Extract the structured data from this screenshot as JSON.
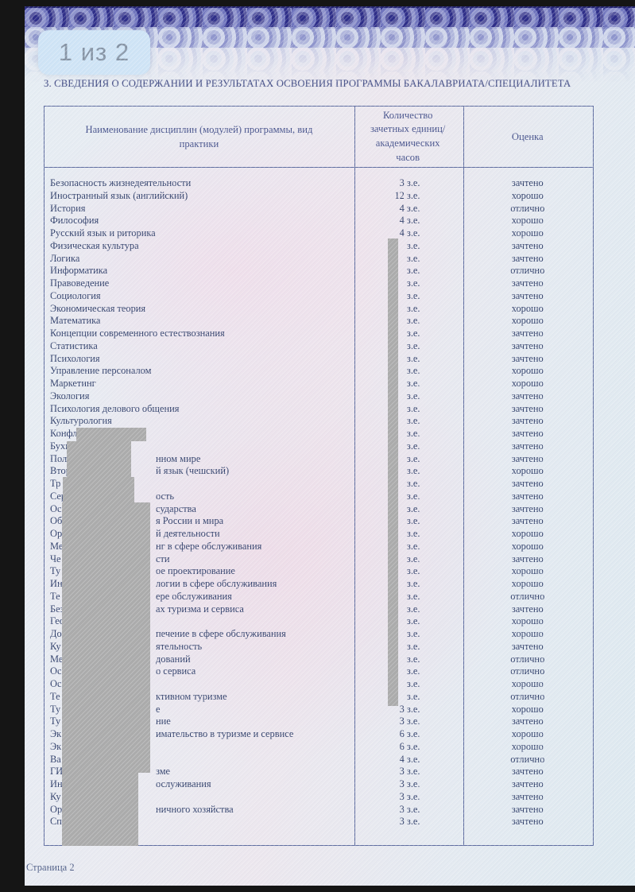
{
  "viewer": {
    "page_badge": "1 из 2",
    "footer_page_label": "Страница 2"
  },
  "document": {
    "section_heading": "3. СВЕДЕНИЯ О СОДЕРЖАНИИ И РЕЗУЛЬТАТАХ ОСВОЕНИЯ ПРОГРАММЫ БАКАЛАВРИАТА/СПЕЦИАЛИТЕТА",
    "table": {
      "col_headers": {
        "course": "Наименование дисциплин (модулей) программы, вид практики",
        "credits": "Количество зачетных единиц/ академических часов",
        "grade": "Оценка"
      },
      "credits_unit": "з.е.",
      "rows": [
        {
          "name": "Безопасность жизнедеятельности",
          "credits": "3 з.е.",
          "grade": "зачтено"
        },
        {
          "name": "Иностранный язык (английский)",
          "credits": "12 з.е.",
          "grade": "хорошо"
        },
        {
          "name": "История",
          "credits": "4 з.е.",
          "grade": "отлично"
        },
        {
          "name": "Философия",
          "credits": "4 з.е.",
          "grade": "хорошо"
        },
        {
          "name": "Русский язык и риторика",
          "credits": "4 з.е.",
          "grade": "хорошо"
        },
        {
          "name": "Физическая культура",
          "credits": "з.е.",
          "grade": "зачтено"
        },
        {
          "name": "Логика",
          "credits": "з.е.",
          "grade": "зачтено"
        },
        {
          "name": "Информатика",
          "credits": "з.е.",
          "grade": "отлично"
        },
        {
          "name": "Правоведение",
          "credits": "з.е.",
          "grade": "зачтено"
        },
        {
          "name": "Социология",
          "credits": "з.е.",
          "grade": "зачтено"
        },
        {
          "name": "Экономическая теория",
          "credits": "з.е.",
          "grade": "хорошо"
        },
        {
          "name": "Математика",
          "credits": "з.е.",
          "grade": "хорошо"
        },
        {
          "name": "Концепции современного естествознания",
          "credits": "з.е.",
          "grade": "зачтено"
        },
        {
          "name": "Статистика",
          "credits": "з.е.",
          "grade": "зачтено"
        },
        {
          "name": "Психология",
          "credits": "з.е.",
          "grade": "зачтено"
        },
        {
          "name": "Управление персоналом",
          "credits": "з.е.",
          "grade": "хорошо"
        },
        {
          "name": "Маркетинг",
          "credits": "з.е.",
          "grade": "хорошо"
        },
        {
          "name": "Экология",
          "credits": "з.е.",
          "grade": "зачтено"
        },
        {
          "name": "Психология делового общения",
          "credits": "з.е.",
          "grade": "зачтено"
        },
        {
          "name": "Культурология",
          "credits": "з.е.",
          "grade": "зачтено"
        },
        {
          "name_prefix": "Конфл",
          "name_suffix": "",
          "credits": "з.е.",
          "grade": "зачтено"
        },
        {
          "name_prefix": "Бухгал",
          "name_suffix": "",
          "credits": "з.е.",
          "grade": "зачтено"
        },
        {
          "name_prefix": "Полит",
          "name_suffix": "нном мире",
          "credits": "з.е.",
          "grade": "зачтено"
        },
        {
          "name_prefix": "Второй",
          "name_suffix": "й язык (чешский)",
          "credits": "з.е.",
          "grade": "хорошо"
        },
        {
          "name_prefix": "Тр",
          "name_suffix": "",
          "credits": "з.е.",
          "grade": "зачтено"
        },
        {
          "name_prefix": "Сер",
          "name_suffix": "ость",
          "credits": "з.е.",
          "grade": "зачтено"
        },
        {
          "name_prefix": "Ос",
          "name_suffix": "сударства",
          "credits": "з.е.",
          "grade": "зачтено"
        },
        {
          "name_prefix": "Об",
          "name_suffix": "я России и мира",
          "credits": "з.е.",
          "grade": "зачтено"
        },
        {
          "name_prefix": "Ор",
          "name_suffix": "й деятельности",
          "credits": "з.е.",
          "grade": "хорошо"
        },
        {
          "name_prefix": "Ме",
          "name_suffix": "нг в сфере обслуживания",
          "credits": "з.е.",
          "grade": "хорошо"
        },
        {
          "name_prefix": "Че",
          "name_suffix": "сти",
          "credits": "з.е.",
          "grade": "зачтено"
        },
        {
          "name_prefix": "Ту",
          "name_suffix": "ое проектирование",
          "credits": "з.е.",
          "grade": "хорошо"
        },
        {
          "name_prefix": "Ин",
          "name_suffix": "логии в сфере обслуживания",
          "credits": "з.е.",
          "grade": "хорошо"
        },
        {
          "name_prefix": "Те",
          "name_suffix": "ере обслуживания",
          "credits": "з.е.",
          "grade": "отлично"
        },
        {
          "name_prefix": "Без",
          "name_suffix": "ах туризма и сервиса",
          "credits": "з.е.",
          "grade": "зачтено"
        },
        {
          "name_prefix": "Гео",
          "name_suffix": "",
          "credits": "з.е.",
          "grade": "хорошо"
        },
        {
          "name_prefix": "До",
          "name_suffix": "печение в сфере обслуживания",
          "credits": "з.е.",
          "grade": "хорошо"
        },
        {
          "name_prefix": "Ку",
          "name_suffix": "ятельность",
          "credits": "з.е.",
          "grade": "зачтено"
        },
        {
          "name_prefix": "Ме",
          "name_suffix": "дований",
          "credits": "з.е.",
          "grade": "отлично"
        },
        {
          "name_prefix": "Ос",
          "name_suffix": "о сервиса",
          "credits": "з.е.",
          "grade": "отлично"
        },
        {
          "name_prefix": "Ос",
          "name_suffix": "",
          "credits": "з.е.",
          "grade": "хорошо"
        },
        {
          "name_prefix": "Те",
          "name_suffix": "ктивном туризме",
          "credits": "з.е.",
          "grade": "отлично"
        },
        {
          "name_prefix": "Ту",
          "name_suffix": "е",
          "credits": "3 з.е.",
          "grade": "хорошо"
        },
        {
          "name_prefix": "Ту",
          "name_suffix": "ние",
          "credits": "3 з.е.",
          "grade": "зачтено"
        },
        {
          "name_prefix": "Эк",
          "name_suffix": "имательство в туризме и сервисе",
          "credits": "6 з.е.",
          "grade": "хорошо"
        },
        {
          "name_prefix": "Эк",
          "name_suffix": "",
          "credits": "6 з.е.",
          "grade": "хорошо"
        },
        {
          "name_prefix": "Ва",
          "name_suffix": "",
          "credits": "4 з.е.",
          "grade": "отлично"
        },
        {
          "name_prefix": "ГИ",
          "name_suffix": "зме",
          "credits": "3 з.е.",
          "grade": "зачтено"
        },
        {
          "name_prefix": "Ин",
          "name_suffix": "ослуживания",
          "credits": "3 з.е.",
          "grade": "зачтено"
        },
        {
          "name_prefix": "Ку",
          "name_suffix": "",
          "credits": "3 з.е.",
          "grade": "зачтено"
        },
        {
          "name_prefix": "Ор",
          "name_suffix": "ничного хозяйства",
          "credits": "3 з.е.",
          "grade": "зачтено"
        },
        {
          "name_prefix": "Сп",
          "name_suffix": "",
          "credits": "3 з.е.",
          "grade": "зачтено"
        }
      ]
    }
  },
  "colors": {
    "redaction_grey": "#ababab",
    "ink_navy": "#31406b",
    "header_ink": "#44508a",
    "badge_bg": "#cfe4f6",
    "guilloche_dark": "#2d2d88"
  }
}
